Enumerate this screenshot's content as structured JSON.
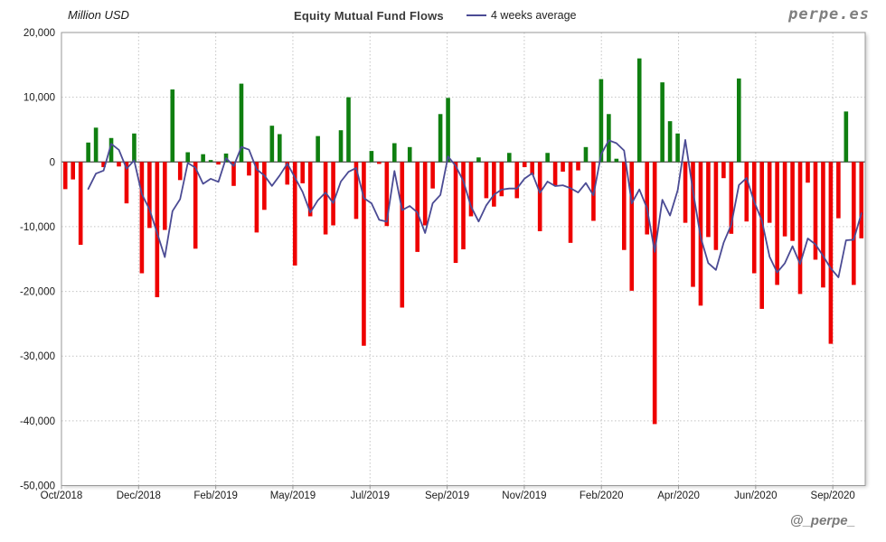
{
  "header": {
    "y_axis_unit": "Million USD",
    "title": "Equity Mutual Fund Flows",
    "legend_label": "4 weeks average",
    "watermark": "perpe.es"
  },
  "footer": {
    "handle": "@_perpe_"
  },
  "colors": {
    "positive_bar": "#0f7f10",
    "negative_bar": "#ee0000",
    "average_line": "#4b4b94",
    "gridline": "#c4c4c4",
    "zero_line": "#4d4d4d",
    "frame": "#999999",
    "tick_text": "#1a1a1a"
  },
  "chart_data": {
    "type": "bar",
    "title": "Equity Mutual Fund Flows",
    "ylabel": "Million USD",
    "legend": [
      "4 weeks average"
    ],
    "legend_position": "top",
    "grid": true,
    "period": "weekly",
    "x_range": "Oct/2018 - Sep/2020",
    "x_tick_labels": [
      "Oct/2018",
      "Dec/2018",
      "Feb/2019",
      "May/2019",
      "Jul/2019",
      "Sep/2019",
      "Nov/2019",
      "Feb/2020",
      "Apr/2020",
      "Jun/2020",
      "Sep/2020"
    ],
    "ylim": [
      -50000,
      20000
    ],
    "y_ticks": [
      20000,
      10000,
      0,
      -10000,
      -20000,
      -30000,
      -40000,
      -50000
    ],
    "y_tick_labels": [
      "20,000",
      "10,000",
      "0",
      "-10,000",
      "-20,000",
      "-30,000",
      "-40,000",
      "-50,000"
    ],
    "values": [
      -4200,
      -2700,
      -12800,
      3000,
      5300,
      -800,
      3700,
      -700,
      -6400,
      4400,
      -17200,
      -10200,
      -20900,
      -10500,
      11200,
      -2800,
      1500,
      -13400,
      1200,
      300,
      -400,
      1300,
      -3700,
      12100,
      -2100,
      -10900,
      -7400,
      5600,
      4300,
      -3500,
      -16000,
      -3300,
      -8400,
      4000,
      -11200,
      -9800,
      4900,
      10000,
      -8800,
      -28400,
      1700,
      -300,
      -9900,
      2900,
      -22500,
      2300,
      -13900,
      -9800,
      -4100,
      7400,
      9900,
      -15600,
      -13500,
      -8400,
      700,
      -5600,
      -6900,
      -5300,
      1400,
      -5600,
      -800,
      -2000,
      -10700,
      1400,
      -3600,
      -1500,
      -12500,
      -1300,
      2300,
      -9100,
      12800,
      7400,
      500,
      -13600,
      -19900,
      16000,
      -11200,
      -40500,
      12300,
      6300,
      4400,
      -9400,
      -19300,
      -22200,
      -11600,
      -13600,
      -2500,
      -11100,
      12900,
      -9200,
      -17200,
      -22700,
      -9400,
      -19000,
      -11500,
      -12200,
      -20400,
      -3200,
      -15100,
      -19400,
      -28100,
      -8700,
      7800,
      -19000,
      -11800
    ],
    "series": [
      {
        "name": "Weekly equity mutual fund flow (bars)",
        "style": "bar"
      },
      {
        "name": "4 weeks average",
        "style": "line",
        "derived": "4-week moving average of values"
      }
    ]
  }
}
